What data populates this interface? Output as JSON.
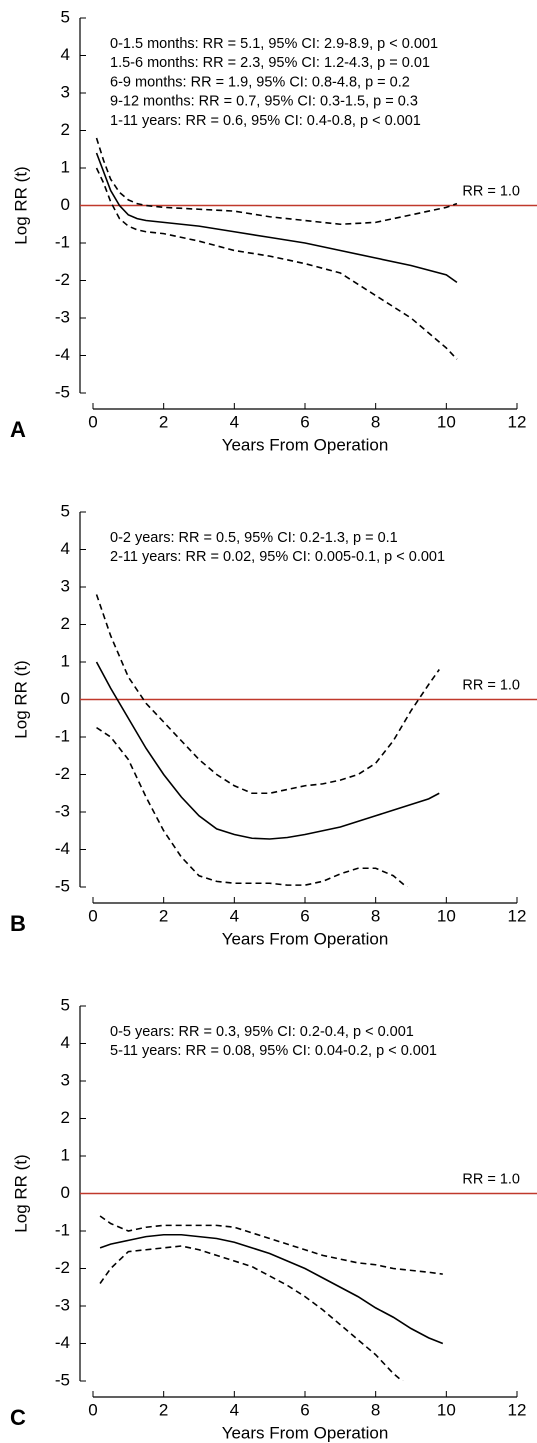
{
  "chart_data": [
    {
      "type": "line",
      "panel": "A",
      "xlabel": "Years From Operation",
      "ylabel": "Log RR (t)",
      "annotations": [
        "0-1.5 months: RR = 5.1, 95% CI: 2.9-8.9, p < 0.001",
        "1.5-6 months: RR = 2.3, 95% CI: 1.2-4.3, p = 0.01",
        "6-9 months: RR = 1.9, 95% CI: 0.8-4.8, p = 0.2",
        "9-12 months: RR = 0.7, 95% CI: 0.3-1.5, p = 0.3",
        "1-11 years: RR = 0.6, 95% CI: 0.4-0.8, p < 0.001"
      ],
      "reference": {
        "value": 0,
        "label": "RR = 1.0",
        "color": "#c0392b"
      },
      "x": [
        0.1,
        0.3,
        0.5,
        0.75,
        1,
        1.25,
        1.5,
        2,
        3,
        4,
        5,
        6,
        7,
        8,
        9,
        10,
        10.3
      ],
      "series": [
        {
          "color": "#000000",
          "dashed": false,
          "values": [
            1.4,
            0.9,
            0.4,
            0.0,
            -0.25,
            -0.35,
            -0.4,
            -0.45,
            -0.55,
            -0.7,
            -0.85,
            -1.0,
            -1.2,
            -1.4,
            -1.6,
            -1.85,
            -2.05
          ]
        },
        {
          "color": "#000000",
          "dashed": true,
          "values": [
            1.8,
            1.2,
            0.7,
            0.35,
            0.15,
            0.05,
            0.0,
            -0.05,
            -0.1,
            -0.15,
            -0.3,
            -0.4,
            -0.5,
            -0.45,
            -0.25,
            -0.05,
            0.05
          ]
        },
        {
          "color": "#000000",
          "dashed": true,
          "values": [
            1.0,
            0.6,
            0.1,
            -0.35,
            -0.55,
            -0.65,
            -0.7,
            -0.75,
            -0.95,
            -1.2,
            -1.35,
            -1.55,
            -1.8,
            -2.4,
            -3.0,
            -3.8,
            -4.1
          ]
        }
      ],
      "xlim": [
        0,
        12
      ],
      "xticks": [
        0,
        2,
        4,
        6,
        8,
        10,
        12
      ],
      "ylim": [
        -5,
        5
      ],
      "yticks": [
        -5,
        -4,
        -3,
        -2,
        -1,
        0,
        1,
        2,
        3,
        4,
        5
      ]
    },
    {
      "type": "line",
      "panel": "B",
      "xlabel": "Years From Operation",
      "ylabel": "Log RR (t)",
      "annotations": [
        "0-2 years: RR = 0.5, 95% CI: 0.2-1.3, p = 0.1",
        "2-11 years: RR = 0.02, 95% CI: 0.005-0.1,  p < 0.001"
      ],
      "reference": {
        "value": 0,
        "label": "RR = 1.0",
        "color": "#c0392b"
      },
      "x": [
        0.1,
        0.5,
        1,
        1.5,
        2,
        2.5,
        3,
        3.5,
        4,
        4.5,
        5,
        5.5,
        6,
        6.5,
        7,
        7.5,
        8,
        8.5,
        9,
        9.5,
        9.8
      ],
      "series": [
        {
          "color": "#000000",
          "dashed": false,
          "values": [
            1.0,
            0.3,
            -0.5,
            -1.3,
            -2.0,
            -2.6,
            -3.1,
            -3.45,
            -3.6,
            -3.7,
            -3.72,
            -3.68,
            -3.6,
            -3.5,
            -3.4,
            -3.25,
            -3.1,
            -2.95,
            -2.8,
            -2.65,
            -2.5
          ]
        },
        {
          "color": "#000000",
          "dashed": true,
          "values": [
            2.8,
            1.7,
            0.6,
            -0.1,
            -0.6,
            -1.1,
            -1.6,
            -2.0,
            -2.3,
            -2.5,
            -2.5,
            -2.4,
            -2.3,
            -2.25,
            -2.15,
            -2.0,
            -1.7,
            -1.1,
            -0.3,
            0.4,
            0.8
          ]
        },
        {
          "color": "#000000",
          "dashed": true,
          "values": [
            -0.75,
            -1.0,
            -1.6,
            -2.6,
            -3.5,
            -4.2,
            -4.7,
            -4.85,
            -4.9,
            -4.9,
            -4.9,
            -4.95,
            -4.95,
            -4.85,
            -4.65,
            -4.5,
            -4.5,
            -4.7,
            -5.1,
            -5.4,
            null
          ]
        }
      ],
      "xlim": [
        0,
        12
      ],
      "xticks": [
        0,
        2,
        4,
        6,
        8,
        10,
        12
      ],
      "ylim": [
        -5,
        5
      ],
      "yticks": [
        -5,
        -4,
        -3,
        -2,
        -1,
        0,
        1,
        2,
        3,
        4,
        5
      ]
    },
    {
      "type": "line",
      "panel": "C",
      "xlabel": "Years From Operation",
      "ylabel": "Log RR (t)",
      "annotations": [
        "0-5 years: RR = 0.3, 95% CI: 0.2-0.4, p < 0.001",
        "5-11 years: RR = 0.08, 95% CI: 0.04-0.2, p < 0.001"
      ],
      "reference": {
        "value": 0,
        "label": "RR = 1.0",
        "color": "#c0392b"
      },
      "x": [
        0.2,
        0.5,
        1,
        1.5,
        2,
        2.5,
        3,
        3.5,
        4,
        4.5,
        5,
        5.5,
        6,
        6.5,
        7,
        7.5,
        8,
        8.5,
        9,
        9.5,
        9.9
      ],
      "series": [
        {
          "color": "#000000",
          "dashed": false,
          "values": [
            -1.45,
            -1.35,
            -1.25,
            -1.15,
            -1.1,
            -1.1,
            -1.15,
            -1.2,
            -1.3,
            -1.45,
            -1.6,
            -1.8,
            -2.0,
            -2.25,
            -2.5,
            -2.75,
            -3.05,
            -3.3,
            -3.6,
            -3.85,
            -4.0
          ]
        },
        {
          "color": "#000000",
          "dashed": true,
          "values": [
            -0.6,
            -0.8,
            -1.0,
            -0.9,
            -0.85,
            -0.85,
            -0.85,
            -0.85,
            -0.9,
            -1.05,
            -1.2,
            -1.35,
            -1.5,
            -1.65,
            -1.75,
            -1.85,
            -1.9,
            -2.0,
            -2.05,
            -2.1,
            -2.15
          ]
        },
        {
          "color": "#000000",
          "dashed": true,
          "values": [
            -2.4,
            -2.0,
            -1.55,
            -1.5,
            -1.45,
            -1.4,
            -1.5,
            -1.65,
            -1.8,
            -1.95,
            -2.2,
            -2.45,
            -2.75,
            -3.1,
            -3.5,
            -3.9,
            -4.3,
            -4.8,
            -5.2,
            -5.6,
            null
          ]
        }
      ],
      "xlim": [
        0,
        12
      ],
      "xticks": [
        0,
        2,
        4,
        6,
        8,
        10,
        12
      ],
      "ylim": [
        -5,
        5
      ],
      "yticks": [
        -5,
        -4,
        -3,
        -2,
        -1,
        0,
        1,
        2,
        3,
        4,
        5
      ]
    }
  ]
}
